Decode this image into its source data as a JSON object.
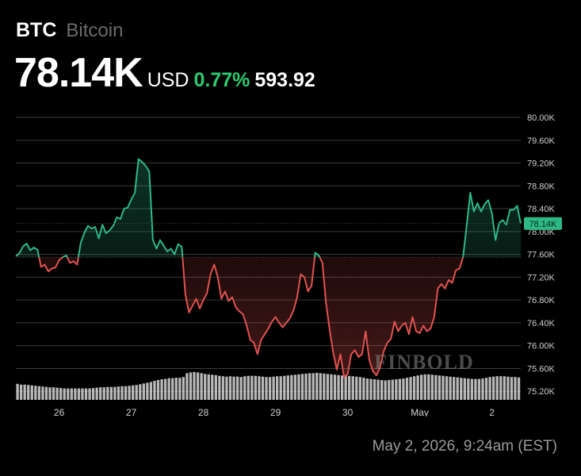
{
  "header": {
    "ticker": "BTC",
    "name": "Bitcoin",
    "price": "78.14K",
    "currency": "USD",
    "change_pct": "0.77%",
    "change_abs": "593.92"
  },
  "timestamp": "May 2, 2026, 9:24am (EST)",
  "watermark": "FINBOLD",
  "colors": {
    "background": "#000000",
    "up": "#2eb886",
    "up_text": "#2ecc71",
    "down": "#e0524f",
    "grid": "#3a3a3a",
    "axis_text": "#d0d0d0",
    "muted": "#6b6b6b",
    "volume": "#d8d8d8"
  },
  "chart_data": {
    "type": "line",
    "baseline": 77.55,
    "current_label": "78.14K",
    "ylim": [
      75.05,
      80.25
    ],
    "y_ticks": [
      {
        "v": 80.0,
        "label": "80.00K"
      },
      {
        "v": 79.6,
        "label": "79.60K"
      },
      {
        "v": 79.2,
        "label": "79.20K"
      },
      {
        "v": 78.8,
        "label": "78.80K"
      },
      {
        "v": 78.4,
        "label": "78.40K"
      },
      {
        "v": 78.0,
        "label": "78.00K"
      },
      {
        "v": 77.6,
        "label": "77.60K"
      },
      {
        "v": 77.2,
        "label": "77.20K"
      },
      {
        "v": 76.8,
        "label": "76.80K"
      },
      {
        "v": 76.4,
        "label": "76.40K"
      },
      {
        "v": 76.0,
        "label": "76.00K"
      },
      {
        "v": 75.6,
        "label": "75.60K"
      },
      {
        "v": 75.2,
        "label": "75.20K"
      }
    ],
    "x_ticks": [
      {
        "t": 0.6,
        "label": "26"
      },
      {
        "t": 1.6,
        "label": "27"
      },
      {
        "t": 2.6,
        "label": "28"
      },
      {
        "t": 3.6,
        "label": "29"
      },
      {
        "t": 4.6,
        "label": "30"
      },
      {
        "t": 5.6,
        "label": "May"
      },
      {
        "t": 6.6,
        "label": "2"
      }
    ],
    "xlim": [
      0,
      7.0
    ],
    "series": [
      {
        "values": [
          [
            0.0,
            77.57
          ],
          [
            0.05,
            77.62
          ],
          [
            0.1,
            77.74
          ],
          [
            0.15,
            77.79
          ],
          [
            0.2,
            77.67
          ],
          [
            0.25,
            77.72
          ],
          [
            0.3,
            77.68
          ],
          [
            0.35,
            77.38
          ],
          [
            0.4,
            77.42
          ],
          [
            0.45,
            77.3
          ],
          [
            0.5,
            77.35
          ],
          [
            0.55,
            77.37
          ],
          [
            0.6,
            77.5
          ],
          [
            0.65,
            77.55
          ],
          [
            0.7,
            77.58
          ],
          [
            0.75,
            77.45
          ],
          [
            0.8,
            77.48
          ],
          [
            0.85,
            77.42
          ],
          [
            0.9,
            77.8
          ],
          [
            0.95,
            77.98
          ],
          [
            1.0,
            78.1
          ],
          [
            1.05,
            78.05
          ],
          [
            1.1,
            78.08
          ],
          [
            1.15,
            77.88
          ],
          [
            1.2,
            78.12
          ],
          [
            1.25,
            77.97
          ],
          [
            1.3,
            78.02
          ],
          [
            1.35,
            78.1
          ],
          [
            1.4,
            78.25
          ],
          [
            1.45,
            78.22
          ],
          [
            1.5,
            78.4
          ],
          [
            1.55,
            78.42
          ],
          [
            1.6,
            78.56
          ],
          [
            1.65,
            78.68
          ],
          [
            1.7,
            79.27
          ],
          [
            1.75,
            79.22
          ],
          [
            1.8,
            79.15
          ],
          [
            1.85,
            79.05
          ],
          [
            1.9,
            77.85
          ],
          [
            1.95,
            77.7
          ],
          [
            2.0,
            77.85
          ],
          [
            2.05,
            77.75
          ],
          [
            2.1,
            77.65
          ],
          [
            2.15,
            77.7
          ],
          [
            2.2,
            77.6
          ],
          [
            2.25,
            77.78
          ],
          [
            2.3,
            77.73
          ],
          [
            2.35,
            76.9
          ],
          [
            2.4,
            76.58
          ],
          [
            2.45,
            76.7
          ],
          [
            2.5,
            76.82
          ],
          [
            2.55,
            76.65
          ],
          [
            2.6,
            76.8
          ],
          [
            2.65,
            76.92
          ],
          [
            2.7,
            77.25
          ],
          [
            2.75,
            77.42
          ],
          [
            2.8,
            77.2
          ],
          [
            2.85,
            76.82
          ],
          [
            2.9,
            76.95
          ],
          [
            2.95,
            76.78
          ],
          [
            3.0,
            76.85
          ],
          [
            3.05,
            76.67
          ],
          [
            3.1,
            76.6
          ],
          [
            3.15,
            76.55
          ],
          [
            3.2,
            76.35
          ],
          [
            3.25,
            76.1
          ],
          [
            3.3,
            76.05
          ],
          [
            3.35,
            75.85
          ],
          [
            3.4,
            76.1
          ],
          [
            3.45,
            76.2
          ],
          [
            3.5,
            76.3
          ],
          [
            3.55,
            76.42
          ],
          [
            3.6,
            76.5
          ],
          [
            3.65,
            76.4
          ],
          [
            3.7,
            76.32
          ],
          [
            3.75,
            76.4
          ],
          [
            3.8,
            76.48
          ],
          [
            3.85,
            76.62
          ],
          [
            3.9,
            76.85
          ],
          [
            3.95,
            77.25
          ],
          [
            4.0,
            77.2
          ],
          [
            4.05,
            76.95
          ],
          [
            4.1,
            77.05
          ],
          [
            4.15,
            77.63
          ],
          [
            4.2,
            77.58
          ],
          [
            4.25,
            77.45
          ],
          [
            4.3,
            76.75
          ],
          [
            4.35,
            76.28
          ],
          [
            4.4,
            75.88
          ],
          [
            4.45,
            75.58
          ],
          [
            4.5,
            75.85
          ],
          [
            4.55,
            75.45
          ],
          [
            4.6,
            75.5
          ],
          [
            4.65,
            75.85
          ],
          [
            4.7,
            75.92
          ],
          [
            4.75,
            75.8
          ],
          [
            4.8,
            75.85
          ],
          [
            4.85,
            76.25
          ],
          [
            4.9,
            75.75
          ],
          [
            4.95,
            75.55
          ],
          [
            5.0,
            75.48
          ],
          [
            5.05,
            75.62
          ],
          [
            5.1,
            75.9
          ],
          [
            5.15,
            76.05
          ],
          [
            5.2,
            76.12
          ],
          [
            5.25,
            76.42
          ],
          [
            5.3,
            76.25
          ],
          [
            5.35,
            76.35
          ],
          [
            5.4,
            76.4
          ],
          [
            5.45,
            76.2
          ],
          [
            5.5,
            76.5
          ],
          [
            5.55,
            76.25
          ],
          [
            5.6,
            76.22
          ],
          [
            5.65,
            76.35
          ],
          [
            5.7,
            76.25
          ],
          [
            5.75,
            76.3
          ],
          [
            5.8,
            76.5
          ],
          [
            5.85,
            77.0
          ],
          [
            5.9,
            77.08
          ],
          [
            5.95,
            77.0
          ],
          [
            6.0,
            77.15
          ],
          [
            6.05,
            77.1
          ],
          [
            6.1,
            77.32
          ],
          [
            6.15,
            77.35
          ],
          [
            6.2,
            77.55
          ],
          [
            6.25,
            78.1
          ],
          [
            6.3,
            78.68
          ],
          [
            6.35,
            78.35
          ],
          [
            6.4,
            78.5
          ],
          [
            6.45,
            78.35
          ],
          [
            6.5,
            78.48
          ],
          [
            6.55,
            78.55
          ],
          [
            6.6,
            78.32
          ],
          [
            6.65,
            77.85
          ],
          [
            6.7,
            78.15
          ],
          [
            6.75,
            78.2
          ],
          [
            6.8,
            78.12
          ],
          [
            6.85,
            78.38
          ],
          [
            6.9,
            78.38
          ],
          [
            6.95,
            78.45
          ],
          [
            7.0,
            78.14
          ]
        ]
      }
    ],
    "volume": [
      0.42,
      0.4,
      0.4,
      0.39,
      0.38,
      0.37,
      0.36,
      0.35,
      0.34,
      0.33,
      0.33,
      0.32,
      0.31,
      0.3,
      0.3,
      0.3,
      0.3,
      0.3,
      0.3,
      0.3,
      0.3,
      0.31,
      0.32,
      0.33,
      0.33,
      0.34,
      0.34,
      0.34,
      0.35,
      0.36,
      0.36,
      0.37,
      0.38,
      0.39,
      0.41,
      0.43,
      0.45,
      0.47,
      0.5,
      0.52,
      0.54,
      0.55,
      0.57,
      0.57,
      0.58,
      0.58,
      0.6,
      0.7,
      0.72,
      0.73,
      0.72,
      0.7,
      0.68,
      0.67,
      0.66,
      0.65,
      0.63,
      0.62,
      0.61,
      0.62,
      0.61,
      0.61,
      0.6,
      0.62,
      0.63,
      0.63,
      0.63,
      0.62,
      0.61,
      0.6,
      0.6,
      0.61,
      0.62,
      0.62,
      0.63,
      0.64,
      0.65,
      0.66,
      0.67,
      0.68,
      0.69,
      0.7,
      0.7,
      0.71,
      0.7,
      0.69,
      0.68,
      0.67,
      0.66,
      0.65,
      0.64,
      0.64,
      0.63,
      0.62,
      0.61,
      0.6,
      0.58,
      0.56,
      0.55,
      0.54,
      0.53,
      0.52,
      0.51,
      0.52,
      0.53,
      0.54,
      0.55,
      0.56,
      0.58,
      0.6,
      0.62,
      0.64,
      0.66,
      0.67,
      0.67,
      0.66,
      0.65,
      0.64,
      0.63,
      0.62,
      0.61,
      0.6,
      0.59,
      0.58,
      0.57,
      0.56,
      0.55,
      0.55,
      0.55,
      0.56,
      0.58,
      0.6,
      0.61,
      0.62,
      0.62,
      0.62,
      0.61,
      0.6,
      0.6,
      0.59
    ]
  }
}
